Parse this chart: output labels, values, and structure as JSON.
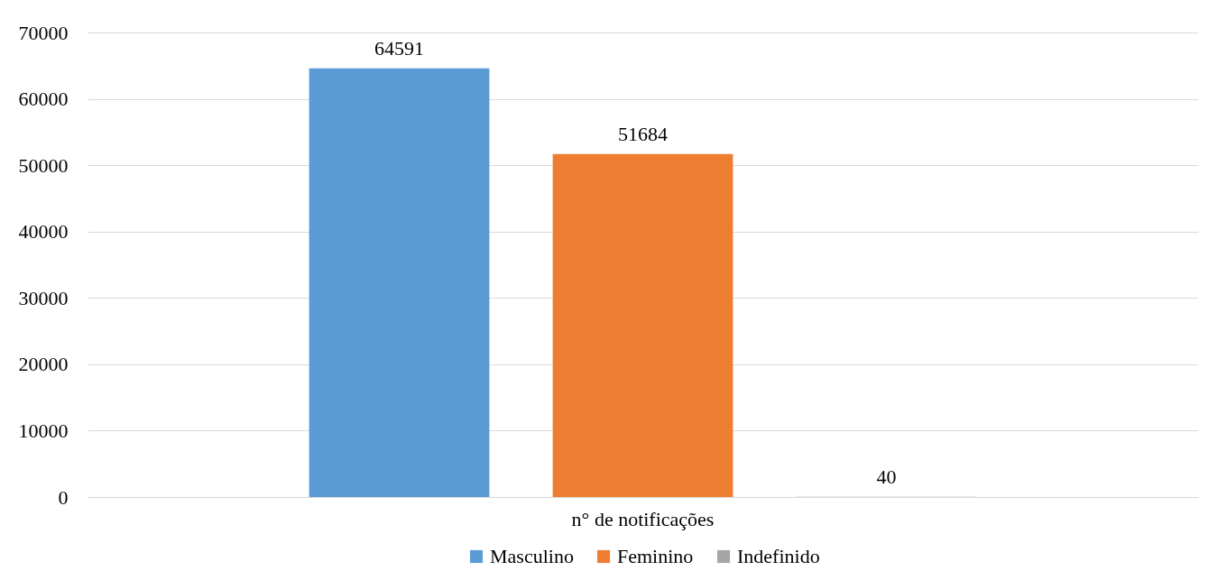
{
  "chart_data": {
    "type": "bar",
    "categories": [
      "n° de notificações"
    ],
    "series": [
      {
        "name": "Masculino",
        "color": "#5b9bd5",
        "values": [
          64591
        ]
      },
      {
        "name": "Feminino",
        "color": "#ed7d31",
        "values": [
          51684
        ]
      },
      {
        "name": "Indefinido",
        "color": "#a5a5a5",
        "values": [
          40
        ]
      }
    ],
    "ylim": [
      0,
      70000
    ],
    "yticks": [
      0,
      10000,
      20000,
      30000,
      40000,
      50000,
      60000,
      70000
    ],
    "grid": "y",
    "legend": "bottom",
    "data_labels": true
  }
}
